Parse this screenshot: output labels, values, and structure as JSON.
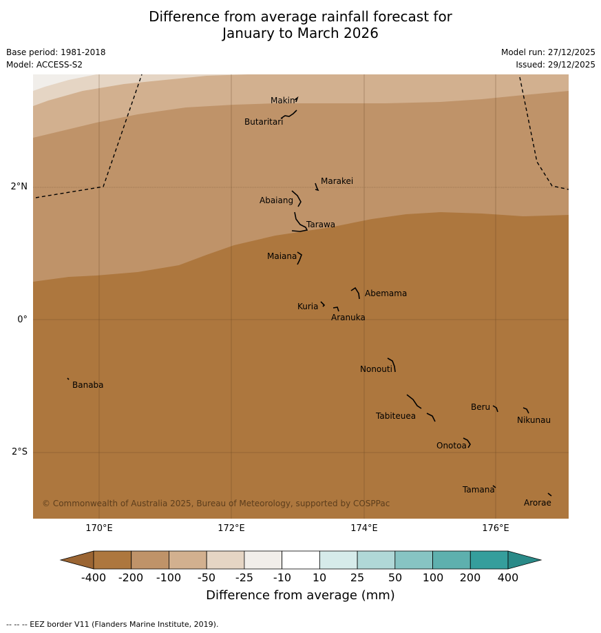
{
  "title_line1": "Difference from average rainfall forecast for",
  "title_line2": "January to March 2026",
  "meta": {
    "base_period": "Base period: 1981-2018",
    "model": "Model: ACCESS-S2",
    "model_run": "Model run: 27/12/2025",
    "issued": "Issued: 29/12/2025"
  },
  "axes": {
    "latitude_labels": [
      "2°N",
      "0°",
      "2°S"
    ],
    "longitude_labels": [
      "170°E",
      "172°E",
      "174°E",
      "176°E"
    ]
  },
  "places": [
    {
      "name": "Makin"
    },
    {
      "name": "Butaritari"
    },
    {
      "name": "Marakei"
    },
    {
      "name": "Abaiang"
    },
    {
      "name": "Tarawa"
    },
    {
      "name": "Maiana"
    },
    {
      "name": "Abemama"
    },
    {
      "name": "Kuria"
    },
    {
      "name": "Aranuka"
    },
    {
      "name": "Banaba"
    },
    {
      "name": "Nonouti"
    },
    {
      "name": "Beru"
    },
    {
      "name": "Nikunau"
    },
    {
      "name": "Tabiteuea"
    },
    {
      "name": "Onotoa"
    },
    {
      "name": "Tamana"
    },
    {
      "name": "Arorae"
    }
  ],
  "copyright": "© Commonwealth of Australia 2025, Bureau of Meteorology, supported by COSPPac",
  "colorbar": {
    "labels": [
      "-400",
      "-200",
      "-100",
      "-50",
      "-25",
      "-10",
      "10",
      "25",
      "50",
      "100",
      "200",
      "400"
    ],
    "colors": [
      "#ad773e",
      "#bf9369",
      "#d2b08f",
      "#e5d5c4",
      "#f1eeea",
      "#ffffff",
      "#d6ebea",
      "#b0d8d7",
      "#87c4c3",
      "#5eb0ae",
      "#359e9c"
    ],
    "under_color": "#9b6533",
    "over_color": "#2a8a88",
    "title": "Difference from average (mm)"
  },
  "footer": "--  --  -- EEZ border V11 (Flanders Marine Institute, 2019)."
}
